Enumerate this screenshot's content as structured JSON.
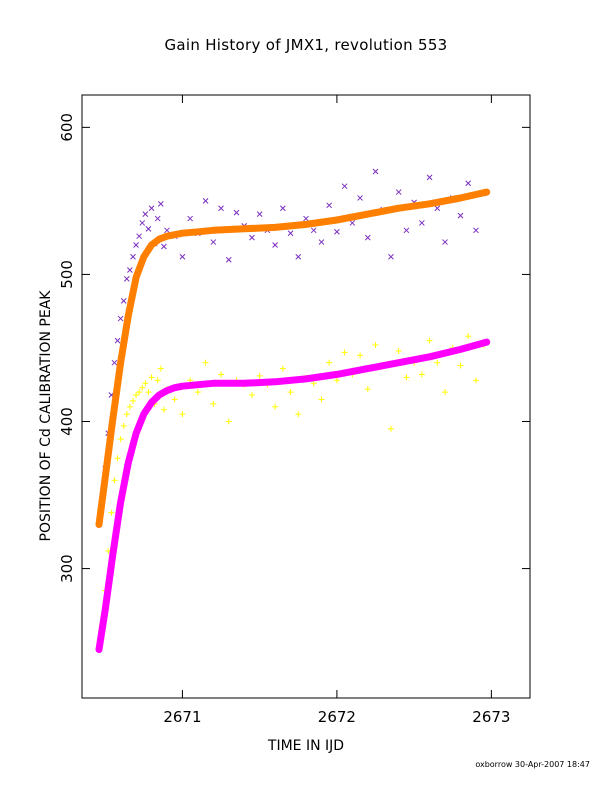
{
  "chart_data": {
    "type": "scatter",
    "title": "Gain History of JMX1, revolution 553",
    "xlabel": "TIME IN IJD",
    "ylabel": "POSITION OF Cd CALIBRATION PEAK",
    "xlim": [
      2670.35,
      2673.25
    ],
    "ylim": [
      212,
      622
    ],
    "xticks": [
      2671,
      2672,
      2673
    ],
    "xtick_labels": [
      "2671",
      "2672",
      "2673"
    ],
    "yticks": [
      300,
      400,
      500,
      600
    ],
    "ytick_labels": [
      "300",
      "400",
      "500",
      "600"
    ],
    "grid": false,
    "legend": "none",
    "footer": "oxborrow 30-Apr-2007 18:47",
    "series": [
      {
        "marker": "x",
        "color": "#7b2fbf",
        "role": "data",
        "x": [
          2670.46,
          2670.48,
          2670.5,
          2670.52,
          2670.54,
          2670.56,
          2670.58,
          2670.6,
          2670.62,
          2670.64,
          2670.66,
          2670.68,
          2670.7,
          2670.72,
          2670.74,
          2670.76,
          2670.78,
          2670.8,
          2670.82,
          2670.84,
          2670.86,
          2670.88,
          2670.9,
          2670.95,
          2671.0,
          2671.05,
          2671.1,
          2671.15,
          2671.2,
          2671.25,
          2671.3,
          2671.35,
          2671.4,
          2671.45,
          2671.5,
          2671.55,
          2671.6,
          2671.65,
          2671.7,
          2671.75,
          2671.8,
          2671.85,
          2671.9,
          2671.95,
          2672.0,
          2672.05,
          2672.1,
          2672.15,
          2672.2,
          2672.25,
          2672.3,
          2672.35,
          2672.4,
          2672.45,
          2672.5,
          2672.55,
          2672.6,
          2672.65,
          2672.7,
          2672.75,
          2672.8,
          2672.85,
          2672.9,
          2672.95
        ],
        "y": [
          330,
          345,
          368,
          392,
          418,
          440,
          455,
          470,
          482,
          497,
          503,
          512,
          520,
          526,
          535,
          541,
          531,
          545,
          521,
          538,
          548,
          519,
          530,
          526,
          512,
          538,
          528,
          550,
          522,
          545,
          510,
          542,
          533,
          525,
          541,
          530,
          520,
          545,
          528,
          512,
          538,
          530,
          522,
          547,
          529,
          560,
          535,
          552,
          525,
          570,
          544,
          512,
          556,
          530,
          549,
          535,
          566,
          545,
          522,
          552,
          540,
          562,
          530,
          555
        ]
      },
      {
        "marker": "fit",
        "color": "#ff7f00",
        "role": "fit",
        "x": [
          2670.46,
          2670.5,
          2670.55,
          2670.6,
          2670.65,
          2670.7,
          2670.75,
          2670.8,
          2670.85,
          2670.9,
          2670.95,
          2671.0,
          2671.1,
          2671.2,
          2671.4,
          2671.6,
          2671.8,
          2672.0,
          2672.2,
          2672.4,
          2672.6,
          2672.8,
          2672.97
        ],
        "y": [
          330,
          362,
          402,
          440,
          472,
          498,
          512,
          520,
          524,
          526,
          527,
          528,
          529,
          530,
          531,
          532,
          534,
          537,
          541,
          545,
          548,
          552,
          556
        ]
      },
      {
        "marker": "+",
        "color": "#ffff00",
        "role": "data",
        "x": [
          2670.46,
          2670.48,
          2670.5,
          2670.52,
          2670.54,
          2670.56,
          2670.58,
          2670.6,
          2670.62,
          2670.64,
          2670.66,
          2670.68,
          2670.7,
          2670.72,
          2670.74,
          2670.76,
          2670.78,
          2670.8,
          2670.82,
          2670.84,
          2670.86,
          2670.88,
          2670.9,
          2670.95,
          2671.0,
          2671.05,
          2671.1,
          2671.15,
          2671.2,
          2671.25,
          2671.3,
          2671.35,
          2671.4,
          2671.45,
          2671.5,
          2671.55,
          2671.6,
          2671.65,
          2671.7,
          2671.75,
          2671.8,
          2671.85,
          2671.9,
          2671.95,
          2672.0,
          2672.05,
          2672.1,
          2672.15,
          2672.2,
          2672.25,
          2672.3,
          2672.35,
          2672.4,
          2672.45,
          2672.5,
          2672.55,
          2672.6,
          2672.65,
          2672.7,
          2672.75,
          2672.8,
          2672.85,
          2672.9,
          2672.95
        ],
        "y": [
          245,
          262,
          285,
          312,
          338,
          360,
          375,
          388,
          397,
          405,
          410,
          414,
          418,
          420,
          423,
          426,
          420,
          430,
          412,
          428,
          436,
          408,
          422,
          415,
          405,
          428,
          420,
          440,
          412,
          432,
          400,
          428,
          425,
          418,
          431,
          425,
          410,
          436,
          420,
          405,
          430,
          426,
          415,
          440,
          428,
          447,
          432,
          445,
          422,
          452,
          438,
          395,
          448,
          430,
          440,
          432,
          455,
          440,
          420,
          450,
          438,
          458,
          428,
          452
        ]
      },
      {
        "marker": "fit",
        "color": "#ff00ff",
        "role": "fit",
        "x": [
          2670.46,
          2670.5,
          2670.55,
          2670.6,
          2670.65,
          2670.7,
          2670.75,
          2670.8,
          2670.85,
          2670.9,
          2670.95,
          2671.0,
          2671.1,
          2671.2,
          2671.4,
          2671.6,
          2671.8,
          2672.0,
          2672.2,
          2672.4,
          2672.6,
          2672.8,
          2672.97
        ],
        "y": [
          245,
          272,
          310,
          345,
          372,
          392,
          405,
          413,
          418,
          421,
          423,
          424,
          425,
          426,
          426,
          427,
          429,
          432,
          436,
          440,
          444,
          449,
          454
        ]
      }
    ]
  }
}
